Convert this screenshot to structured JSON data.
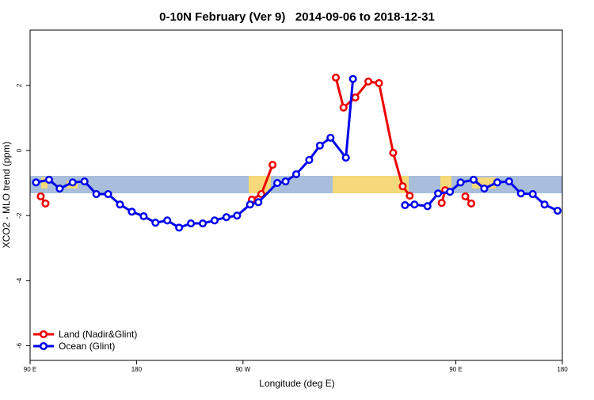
{
  "chart_data": {
    "type": "line",
    "title": "0-10N February (Ver 9)   2014-09-06 to 2018-12-31",
    "xlabel": "Longitude (deg E)",
    "ylabel": "XCO2 - MLO trend (ppm)",
    "xlim": [
      90,
      540
    ],
    "xticks": [
      {
        "value": 90,
        "label": "90 E"
      },
      {
        "value": 180,
        "label": "180"
      },
      {
        "value": 270,
        "label": "90 W"
      },
      {
        "value": 450,
        "label": "90 E"
      },
      {
        "value": 540,
        "label": "180"
      }
    ],
    "ylim": [
      -6.45,
      3.7
    ],
    "yticks": [
      -6,
      -4,
      -2,
      0,
      2
    ],
    "legend": "bottom-left",
    "series": [
      {
        "name": "Land (Nadir&Glint)",
        "color": "#ee0000",
        "x": [
          99,
          103,
          190,
          277.5,
          285.5,
          295,
          320,
          348.5,
          355,
          365,
          376,
          385,
          397,
          405,
          411,
          425,
          438,
          441,
          450,
          458,
          463
        ],
        "values": [
          -1.41,
          -1.63,
          null,
          -1.51,
          -1.34,
          -0.44,
          null,
          2.24,
          1.32,
          1.63,
          2.12,
          2.07,
          -0.07,
          -1.1,
          -1.39,
          null,
          -1.61,
          -1.22,
          null,
          -1.41,
          -1.63
        ]
      },
      {
        "name": "Ocean (Glint)",
        "color": "#0000ee",
        "x": [
          95,
          106,
          115,
          126,
          136,
          146,
          156,
          166,
          176,
          186,
          196,
          206,
          216,
          226,
          236,
          246,
          256,
          265,
          276,
          283,
          299,
          306,
          315,
          326,
          335,
          344,
          357,
          363,
          385,
          407,
          415,
          426,
          435,
          445,
          454,
          465,
          474,
          485,
          495,
          505,
          515,
          525,
          536
        ],
        "values": [
          -0.98,
          -0.9,
          -1.17,
          -0.98,
          -0.95,
          -1.34,
          -1.34,
          -1.66,
          -1.88,
          -2.02,
          -2.22,
          -2.15,
          -2.37,
          -2.24,
          -2.24,
          -2.15,
          -2.05,
          -2.0,
          -1.66,
          -1.59,
          -1.0,
          -0.95,
          -0.73,
          -0.29,
          0.15,
          0.39,
          -0.22,
          2.2,
          null,
          -1.68,
          -1.66,
          -1.71,
          -1.32,
          -1.27,
          -0.98,
          -0.9,
          -1.17,
          -0.98,
          -0.95,
          -1.32,
          -1.34,
          -1.66,
          -1.85
        ]
      }
    ]
  }
}
